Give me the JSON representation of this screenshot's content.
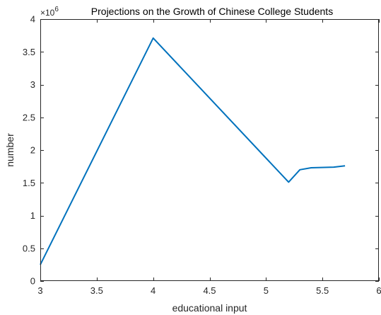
{
  "chart_data": {
    "type": "line",
    "title": "Projections on the Growth of Chinese College Students",
    "xlabel": "educational input",
    "ylabel": "number",
    "y_multiplier": "×10",
    "y_exponent": "6",
    "xlim": [
      3,
      6
    ],
    "ylim": [
      0,
      4
    ],
    "x_ticks": [
      3,
      3.5,
      4,
      4.5,
      5,
      5.5,
      6
    ],
    "x_tick_labels": [
      "3",
      "3.5",
      "4",
      "4.5",
      "5",
      "5.5",
      "6"
    ],
    "y_ticks": [
      0,
      0.5,
      1,
      1.5,
      2,
      2.5,
      3,
      3.5,
      4
    ],
    "y_tick_labels": [
      "0",
      "0.5",
      "1",
      "1.5",
      "2",
      "2.5",
      "3",
      "3.5",
      "4"
    ],
    "grid": false,
    "line_color": "#0072bd",
    "series": [
      {
        "x": [
          3.0,
          4.0,
          5.2,
          5.3,
          5.4,
          5.6,
          5.7
        ],
        "y": [
          0.25,
          3.71,
          1.51,
          1.7,
          1.73,
          1.74,
          1.76
        ]
      }
    ]
  }
}
